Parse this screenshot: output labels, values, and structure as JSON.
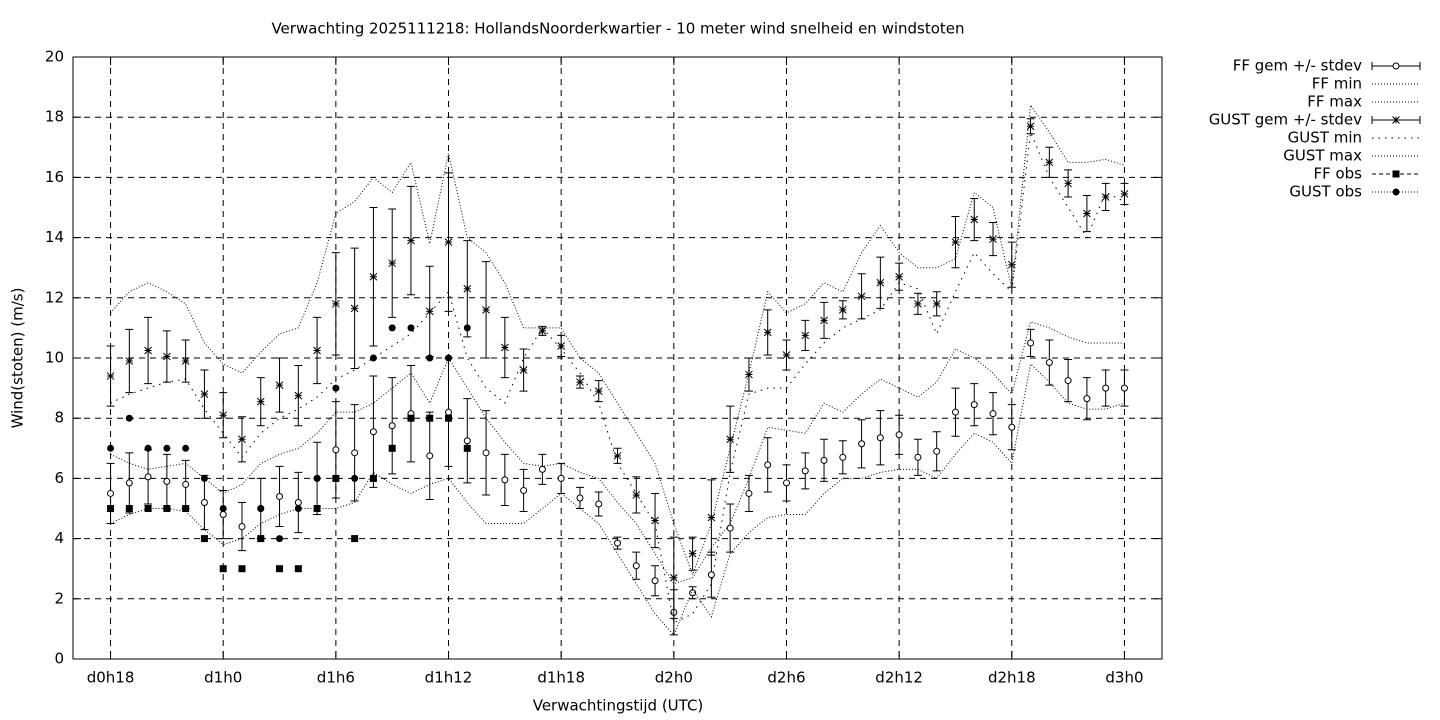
{
  "chart_data": {
    "type": "errorbar",
    "title": "Verwachting 2025111218: HollandsNoorderkwartier - 10 meter wind snelheid en windstoten",
    "xlabel": "Verwachtingstijd (UTC)",
    "ylabel": "Wind(stoten) (m/s)",
    "x": [
      18,
      19,
      20,
      21,
      22,
      23,
      24,
      25,
      26,
      27,
      28,
      29,
      30,
      31,
      32,
      33,
      34,
      35,
      36,
      37,
      38,
      39,
      40,
      41,
      42,
      43,
      44,
      45,
      46,
      47,
      48,
      49,
      50,
      51,
      52,
      53,
      54,
      55,
      56,
      57,
      58,
      59,
      60,
      61,
      62,
      63,
      64,
      65,
      66,
      67,
      68,
      69,
      70,
      71,
      72
    ],
    "xlim": [
      16,
      74
    ],
    "xticks": [
      {
        "value": 18,
        "label": "d0h18"
      },
      {
        "value": 24,
        "label": "d1h0"
      },
      {
        "value": 30,
        "label": "d1h6"
      },
      {
        "value": 36,
        "label": "d1h12"
      },
      {
        "value": 42,
        "label": "d1h18"
      },
      {
        "value": 48,
        "label": "d2h0"
      },
      {
        "value": 54,
        "label": "d2h6"
      },
      {
        "value": 60,
        "label": "d2h12"
      },
      {
        "value": 66,
        "label": "d2h18"
      },
      {
        "value": 72,
        "label": "d3h0"
      }
    ],
    "ylim": [
      0,
      20
    ],
    "yticks": [
      0,
      2,
      4,
      6,
      8,
      10,
      12,
      14,
      16,
      18,
      20
    ],
    "grid": true,
    "legend": "outside-right-top",
    "series": [
      {
        "name": "FF gem +/- stdev",
        "color": "#000000",
        "kind": "errorbar",
        "marker": "open-circle",
        "values": [
          5.5,
          5.85,
          6.05,
          5.9,
          5.8,
          5.2,
          4.8,
          4.4,
          5.0,
          5.4,
          5.2,
          6.0,
          6.95,
          6.85,
          7.55,
          7.75,
          8.15,
          6.75,
          8.2,
          7.25,
          6.85,
          5.95,
          5.6,
          6.3,
          6.0,
          5.35,
          5.15,
          3.85,
          3.1,
          2.6,
          1.55,
          2.2,
          2.8,
          4.35,
          5.5,
          6.45,
          5.85,
          6.25,
          6.6,
          6.7,
          7.15,
          7.35,
          7.45,
          6.7,
          6.9,
          8.2,
          8.45,
          8.15,
          7.7,
          10.5,
          9.85,
          9.25,
          8.65,
          9.0,
          9.0
        ],
        "errors": [
          1.0,
          1.0,
          0.9,
          0.9,
          0.8,
          0.9,
          0.8,
          0.8,
          1.0,
          1.0,
          1.0,
          1.2,
          1.6,
          1.6,
          1.85,
          1.6,
          1.6,
          1.45,
          1.8,
          1.4,
          1.4,
          0.85,
          0.7,
          0.5,
          0.5,
          0.35,
          0.4,
          0.2,
          0.45,
          0.5,
          0.75,
          0.2,
          0.75,
          0.8,
          0.6,
          0.9,
          0.6,
          0.6,
          0.7,
          0.55,
          0.8,
          0.9,
          0.65,
          0.6,
          0.65,
          0.8,
          0.7,
          0.7,
          0.75,
          0.45,
          0.75,
          0.7,
          0.7,
          0.6,
          0.6
        ]
      },
      {
        "name": "FF min",
        "color": "#000000",
        "kind": "line",
        "dash": "1,2",
        "values": [
          4.5,
          4.8,
          5.0,
          5.0,
          4.9,
          4.3,
          3.8,
          4.0,
          4.5,
          4.8,
          5.0,
          5.0,
          5.0,
          5.2,
          6.2,
          5.8,
          5.5,
          5.8,
          6.0,
          5.2,
          4.5,
          4.5,
          4.5,
          5.0,
          5.5,
          5.0,
          4.5,
          3.5,
          2.5,
          1.5,
          0.8,
          2.3,
          1.4,
          3.5,
          4.2,
          4.7,
          4.8,
          4.8,
          5.5,
          6.0,
          6.0,
          6.2,
          6.3,
          6.3,
          6.0,
          6.8,
          7.5,
          7.2,
          6.5,
          9.8,
          9.2,
          8.5,
          8.3,
          8.3,
          8.5
        ]
      },
      {
        "name": "FF max",
        "color": "#000000",
        "kind": "line",
        "dash": "1,2",
        "values": [
          6.8,
          6.5,
          6.3,
          6.4,
          6.5,
          6.0,
          5.5,
          5.8,
          6.5,
          6.8,
          7.0,
          7.5,
          8.2,
          8.2,
          8.5,
          9.0,
          9.5,
          8.5,
          10.0,
          9.0,
          8.0,
          7.2,
          6.5,
          6.4,
          6.5,
          6.2,
          6.0,
          5.2,
          4.5,
          3.5,
          2.5,
          2.7,
          3.7,
          4.5,
          6.0,
          7.7,
          7.6,
          7.5,
          8.5,
          8.2,
          8.8,
          9.3,
          9.0,
          8.7,
          9.2,
          10.3,
          10.0,
          9.5,
          8.8,
          11.2,
          11.0,
          10.7,
          10.5,
          10.5,
          10.5
        ]
      },
      {
        "name": "GUST gem +/- stdev",
        "color": "#000000",
        "kind": "errorbar",
        "marker": "star",
        "values": [
          9.4,
          9.9,
          10.25,
          10.05,
          9.9,
          8.8,
          8.1,
          7.3,
          8.55,
          9.1,
          8.75,
          10.25,
          11.8,
          11.65,
          12.7,
          13.15,
          13.9,
          11.55,
          13.85,
          12.3,
          11.6,
          10.35,
          9.6,
          10.9,
          10.4,
          9.2,
          8.9,
          6.75,
          5.45,
          4.6,
          2.7,
          3.5,
          4.7,
          7.3,
          9.45,
          10.85,
          10.1,
          10.75,
          11.25,
          11.6,
          12.05,
          12.5,
          12.7,
          11.8,
          11.8,
          13.85,
          14.6,
          13.95,
          13.1,
          17.7,
          16.5,
          15.8,
          14.8,
          15.35,
          15.45
        ],
        "errors": [
          1.0,
          1.05,
          1.1,
          0.85,
          0.7,
          0.8,
          0.75,
          0.75,
          0.8,
          0.9,
          1.0,
          1.1,
          1.7,
          2.0,
          2.3,
          1.8,
          1.8,
          1.5,
          2.3,
          1.6,
          1.6,
          1.0,
          0.7,
          0.15,
          0.35,
          0.2,
          0.35,
          0.25,
          0.6,
          0.9,
          1.35,
          0.55,
          1.25,
          1.1,
          0.55,
          0.75,
          0.5,
          0.5,
          0.6,
          0.3,
          0.75,
          0.85,
          0.45,
          0.35,
          0.4,
          0.85,
          0.7,
          0.55,
          0.75,
          0.25,
          0.5,
          0.45,
          0.6,
          0.45,
          0.35
        ]
      },
      {
        "name": "GUST min",
        "color": "#000000",
        "kind": "line",
        "dash": "1.5,5",
        "values": [
          8.5,
          8.8,
          9.0,
          9.2,
          9.3,
          8.3,
          7.5,
          6.7,
          7.5,
          8.0,
          8.3,
          8.7,
          9.3,
          9.6,
          10.0,
          10.4,
          10.8,
          11.5,
          12.2,
          10.0,
          9.0,
          8.5,
          10.0,
          11.0,
          10.3,
          9.5,
          8.5,
          6.5,
          5.5,
          4.5,
          1.2,
          1.5,
          2.5,
          6.2,
          8.8,
          9.0,
          9.0,
          9.8,
          10.5,
          11.0,
          11.3,
          11.6,
          12.5,
          12.3,
          10.8,
          12.2,
          13.5,
          12.8,
          12.2,
          17.5,
          16.0,
          15.0,
          14.0,
          15.5,
          15.2
        ]
      },
      {
        "name": "GUST max",
        "color": "#000000",
        "kind": "line",
        "dash": "1,2",
        "values": [
          11.5,
          12.2,
          12.5,
          12.2,
          11.8,
          10.5,
          9.8,
          9.5,
          10.2,
          10.8,
          11.0,
          12.5,
          14.8,
          15.2,
          16.0,
          15.5,
          16.5,
          13.8,
          16.8,
          14.0,
          13.5,
          12.5,
          11.0,
          11.0,
          11.0,
          10.0,
          9.5,
          8.5,
          7.5,
          6.5,
          4.5,
          2.8,
          4.5,
          7.0,
          9.5,
          12.2,
          11.5,
          11.8,
          12.5,
          12.2,
          13.5,
          14.4,
          13.5,
          13.0,
          13.0,
          13.3,
          15.5,
          15.0,
          12.3,
          18.4,
          17.5,
          16.5,
          16.5,
          16.6,
          16.4
        ]
      },
      {
        "name": "FF obs",
        "color": "#000000",
        "kind": "points",
        "marker": "square",
        "dash": "4,3",
        "values": [
          5,
          5,
          5,
          5,
          5,
          4,
          3,
          3,
          4,
          3,
          3,
          5,
          6,
          4,
          6,
          7,
          8,
          8,
          8,
          7,
          null,
          null,
          null,
          null,
          null,
          null,
          null,
          null,
          null,
          null,
          null,
          null,
          null,
          null,
          null,
          null,
          null,
          null,
          null,
          null,
          null,
          null,
          null,
          null,
          null,
          null,
          null,
          null,
          null,
          null,
          null,
          null,
          null,
          null,
          null
        ]
      },
      {
        "name": "GUST obs",
        "color": "#000000",
        "kind": "points",
        "marker": "dot",
        "dash": "1,2",
        "values": [
          7,
          8,
          7,
          7,
          7,
          6,
          5,
          null,
          5,
          4,
          5,
          6,
          9,
          6,
          10,
          11,
          11,
          10,
          10,
          11,
          null,
          null,
          null,
          null,
          null,
          null,
          null,
          null,
          null,
          null,
          null,
          null,
          null,
          null,
          null,
          null,
          null,
          null,
          null,
          null,
          null,
          null,
          null,
          null,
          null,
          null,
          null,
          null,
          null,
          null,
          null,
          null,
          null,
          null,
          null
        ]
      }
    ]
  }
}
